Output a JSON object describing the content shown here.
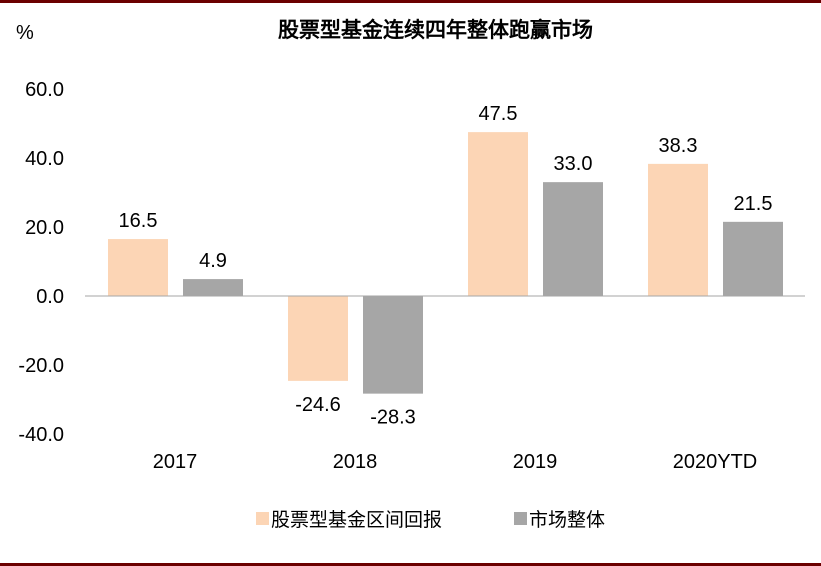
{
  "chart_data": {
    "type": "bar",
    "title": "股票型基金连续四年整体跑赢市场",
    "ylabel": "%",
    "xlabel": "",
    "categories": [
      "2017",
      "2018",
      "2019",
      "2020YTD"
    ],
    "series": [
      {
        "name": "股票型基金区间回报",
        "color": "#fcd5b5",
        "values": [
          16.5,
          -24.6,
          47.5,
          38.3
        ],
        "labels": [
          "16.5",
          "-24.6",
          "47.5",
          "38.3"
        ]
      },
      {
        "name": "市场整体",
        "color": "#a6a6a6",
        "values": [
          4.9,
          -28.3,
          33.0,
          21.5
        ],
        "labels": [
          "4.9",
          "-28.3",
          "33.0",
          "21.5"
        ]
      }
    ],
    "ylim": [
      -40,
      60
    ],
    "yticks": [
      "60.0",
      "40.0",
      "20.0",
      "0.0",
      "-20.0",
      "-40.0"
    ],
    "grid": false,
    "legend": "bottom"
  }
}
